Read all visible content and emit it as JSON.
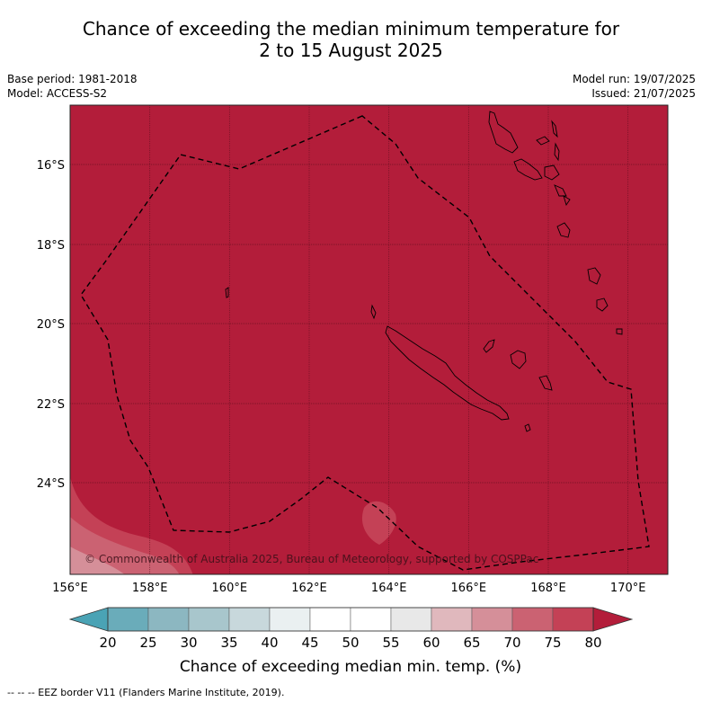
{
  "title": {
    "line1": "Chance of exceeding the median minimum temperature for",
    "line2": "2 to 15 August 2025"
  },
  "meta": {
    "base_period": "Base period: 1981-2018",
    "model": "Model: ACCESS-S2",
    "model_run": "Model run: 19/07/2025",
    "issued": "Issued: 21/07/2025"
  },
  "copyright": "© Commonwealth of Australia 2025, Bureau of Meteorology, supported by COSPPac",
  "eez_note": "--  --  -- EEZ border V11 (Flanders Marine Institute, 2019).",
  "colorbar_label": "Chance of exceeding median min. temp. (%)",
  "colors": {
    "dominant_fill": "#b31d3a",
    "band_75_80": "#c44156",
    "band_70_75": "#cb6272",
    "band_65_70": "#d58f99",
    "band_60_65": "#e3b7bd",
    "low_end": "#4aa3b5"
  },
  "chart_data": {
    "type": "heatmap",
    "region": "Pacific map centred on New Caledonia",
    "lon_range": [
      156,
      171
    ],
    "lat_range": [
      -26.2,
      -14.7
    ],
    "x_ticks": [
      "156°E",
      "158°E",
      "160°E",
      "162°E",
      "164°E",
      "166°E",
      "168°E",
      "170°E"
    ],
    "y_ticks": [
      "16°S",
      "18°S",
      "20°S",
      "22°S",
      "24°S"
    ],
    "grid": true,
    "colorbar": {
      "ticks": [
        20,
        25,
        30,
        35,
        40,
        45,
        50,
        55,
        60,
        65,
        70,
        75,
        80
      ],
      "colors": [
        "#6aacba",
        "#8cb7c1",
        "#a8c6cc",
        "#c8d8dc",
        "#eaf0f1",
        "#ffffff",
        "#ffffff",
        "#e8e8e8",
        "#e0b8bd",
        "#d58f99",
        "#cb6272",
        "#c44156"
      ],
      "extend_low_color": "#4aa3b5",
      "extend_high_color": "#b31d3a"
    }
  }
}
